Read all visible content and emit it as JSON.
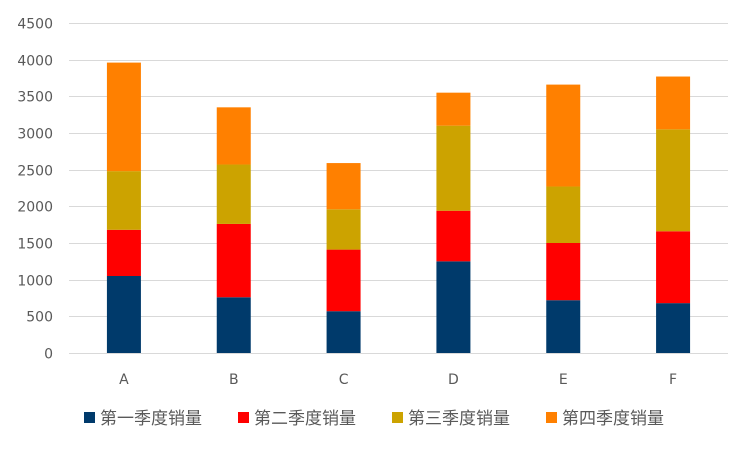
{
  "chart_data": {
    "type": "bar",
    "stacked": true,
    "categories": [
      "A",
      "B",
      "C",
      "D",
      "E",
      "F"
    ],
    "series": [
      {
        "name": "第一季度销量",
        "color": "#003a6b",
        "values": [
          1050,
          760,
          570,
          1250,
          720,
          680
        ]
      },
      {
        "name": "第二季度销量",
        "color": "#ff0000",
        "values": [
          630,
          1000,
          840,
          690,
          780,
          980
        ]
      },
      {
        "name": "第三季度销量",
        "color": "#cca300",
        "values": [
          800,
          810,
          550,
          1160,
          770,
          1390
        ]
      },
      {
        "name": "第四季度销量",
        "color": "#ff8000",
        "values": [
          1480,
          780,
          630,
          450,
          1390,
          720
        ]
      }
    ],
    "title": "",
    "xlabel": "",
    "ylabel": "",
    "ylim": [
      0,
      4500
    ],
    "yticks": [
      0,
      500,
      1000,
      1500,
      2000,
      2500,
      3000,
      3500,
      4000,
      4500
    ],
    "grid": true,
    "legend_position": "bottom"
  }
}
